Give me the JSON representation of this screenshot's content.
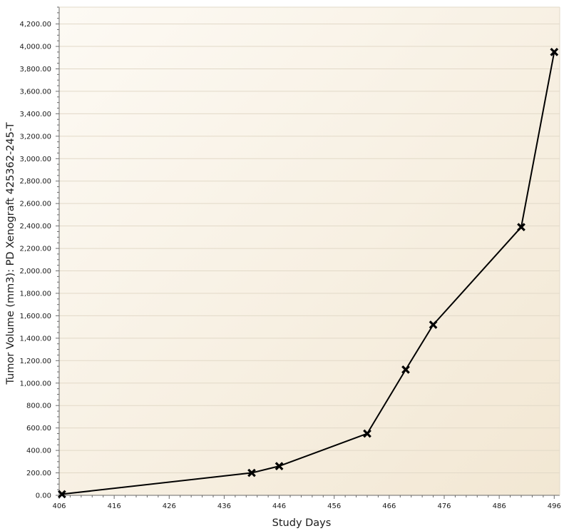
{
  "chart_data": {
    "type": "line",
    "xlabel": "Study Days",
    "ylabel": "Tumor Volume (mm3): PD Xenograft 425362-245-T",
    "xlim": [
      406,
      497
    ],
    "ylim": [
      0,
      4350
    ],
    "x_ticks": [
      406,
      416,
      426,
      436,
      446,
      456,
      466,
      476,
      486,
      496
    ],
    "y_ticks": [
      0,
      200,
      400,
      600,
      800,
      1000,
      1200,
      1400,
      1600,
      1800,
      2000,
      2200,
      2400,
      2600,
      2800,
      3000,
      3200,
      3400,
      3600,
      3800,
      4000,
      4200
    ],
    "x_tick_labels": [
      "406",
      "416",
      "426",
      "436",
      "446",
      "456",
      "466",
      "476",
      "486",
      "496"
    ],
    "y_tick_labels": [
      "0.00",
      "200.00",
      "400.00",
      "600.00",
      "800.00",
      "1,000.00",
      "1,200.00",
      "1,400.00",
      "1,600.00",
      "1,800.00",
      "2,000.00",
      "2,200.00",
      "2,400.00",
      "2,600.00",
      "2,800.00",
      "3,000.00",
      "3,200.00",
      "3,400.00",
      "3,600.00",
      "3,800.00",
      "4,000.00",
      "4,200.00"
    ],
    "grid": true,
    "series": [
      {
        "x": [
          406.5,
          441,
          446,
          462,
          469,
          474,
          490,
          496
        ],
        "y": [
          10,
          200,
          260,
          550,
          1120,
          1520,
          2390,
          3950
        ],
        "color": "#000000",
        "marker": "x"
      }
    ],
    "colors": {
      "plot_bg_light": "#fdfaf4",
      "plot_bg_dark": "#f2e7d3",
      "grid": "#e2d9c8",
      "axis": "#6a6a6a",
      "line": "#000000"
    }
  }
}
